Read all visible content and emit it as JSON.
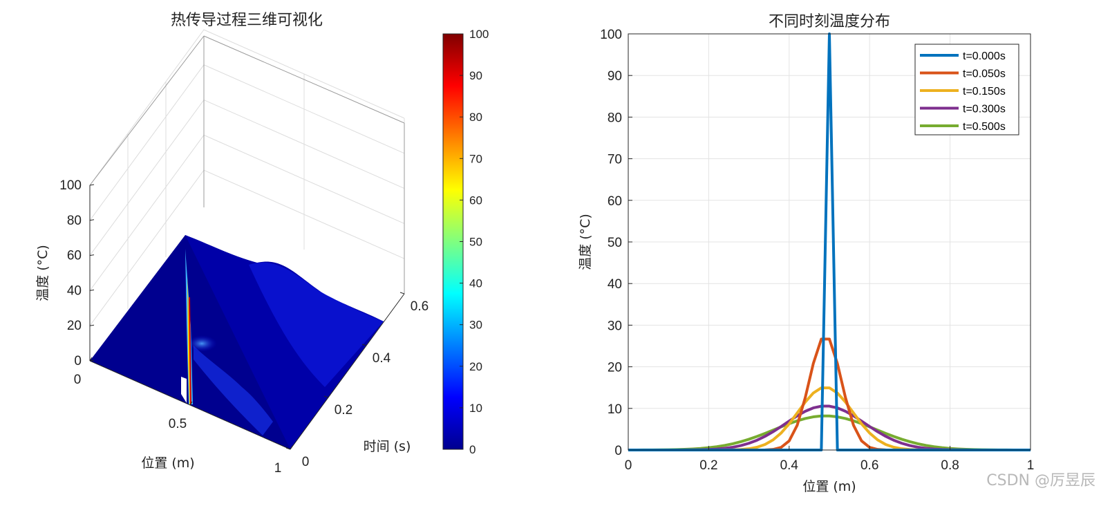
{
  "watermark": "CSDN @厉昱辰",
  "chart_data": [
    {
      "type": "surface",
      "title": "热传导过程三维可视化",
      "xlabel": "位置 (m)",
      "ylabel": "时间 (s)",
      "zlabel": "温度 (°C)",
      "x_ticks": [
        "0",
        "0.5",
        "1"
      ],
      "y_ticks": [
        "0",
        "0.2",
        "0.4",
        "0.6"
      ],
      "z_ticks": [
        "0",
        "20",
        "40",
        "60",
        "80",
        "100"
      ],
      "xlim": [
        0,
        1
      ],
      "ylim": [
        0,
        0.6
      ],
      "zlim": [
        0,
        100
      ],
      "colormap": "jet",
      "colorbar": {
        "range": [
          0,
          100
        ],
        "ticks": [
          "0",
          "10",
          "20",
          "30",
          "40",
          "50",
          "60",
          "70",
          "80",
          "90",
          "100"
        ]
      },
      "initial_peak": {
        "x": 0.5,
        "t": 0,
        "value": 100
      }
    },
    {
      "type": "line",
      "title": "不同时刻温度分布",
      "xlabel": "位置 (m)",
      "ylabel": "温度 (°C)",
      "xlim": [
        0,
        1
      ],
      "ylim": [
        0,
        100
      ],
      "x_ticks": [
        "0",
        "0.2",
        "0.4",
        "0.6",
        "0.8",
        "1"
      ],
      "y_ticks": [
        "0",
        "10",
        "20",
        "30",
        "40",
        "50",
        "60",
        "70",
        "80",
        "90",
        "100"
      ],
      "grid": true,
      "legend_position": "top-right",
      "series": [
        {
          "name": "t=0.000s",
          "color": "#0072BD",
          "peak": 100,
          "x": [
            0,
            0.46,
            0.48,
            0.5,
            0.52,
            1
          ],
          "y": [
            0,
            0,
            0,
            100,
            0,
            0
          ]
        },
        {
          "name": "t=0.050s",
          "color": "#D95319",
          "peak": 27.5,
          "sigma": 0.04
        },
        {
          "name": "t=0.150s",
          "color": "#EDB120",
          "peak": 15.1,
          "sigma": 0.068
        },
        {
          "name": "t=0.300s",
          "color": "#7E2F8E",
          "peak": 10.6,
          "sigma": 0.098
        },
        {
          "name": "t=0.500s",
          "color": "#77AC30",
          "peak": 8.2,
          "sigma": 0.125
        }
      ],
      "center": 0.49
    }
  ]
}
